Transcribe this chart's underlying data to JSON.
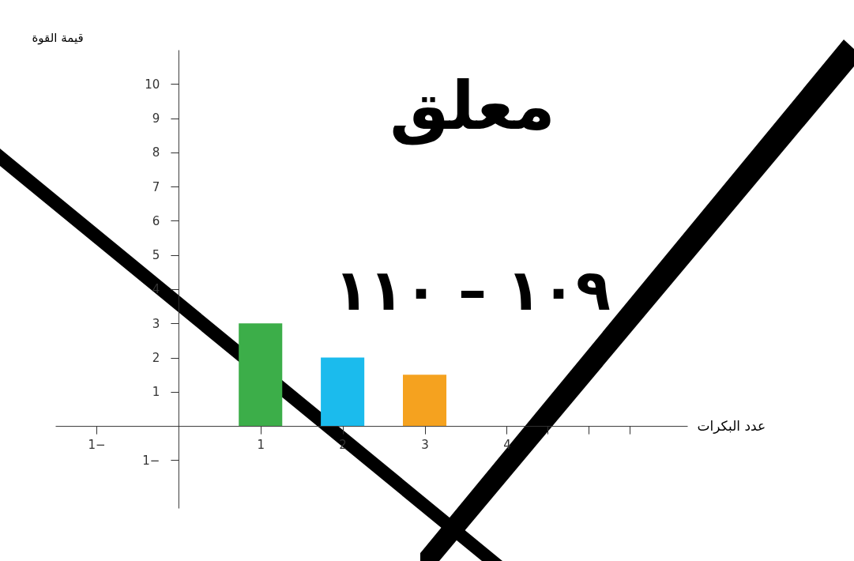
{
  "chart_data": {
    "type": "bar",
    "xlabel": "عدد البكرات",
    "ylabel": "قيمة القوة",
    "x": [
      1,
      2,
      3
    ],
    "values": [
      3,
      2,
      1.5
    ],
    "colors": [
      "#3cae49",
      "#1bbbed",
      "#f5a21f"
    ],
    "xlim": [
      -1.5,
      6.2
    ],
    "xticks": [
      {
        "value": -1,
        "label": "1−"
      },
      1,
      2,
      3,
      4,
      {
        "value": 4.5,
        "label": null
      },
      {
        "value": 5,
        "label": null
      },
      {
        "value": 5.5,
        "label": null
      }
    ],
    "ylim": [
      -2.4,
      11
    ],
    "yticks": [
      {
        "value": -1,
        "label": "1−"
      },
      1,
      2,
      3,
      4,
      5,
      6,
      7,
      8,
      9,
      10
    ],
    "grid": false,
    "legend": false,
    "annotations": [
      "معلق",
      "١٠٩ – ١١٠"
    ]
  }
}
